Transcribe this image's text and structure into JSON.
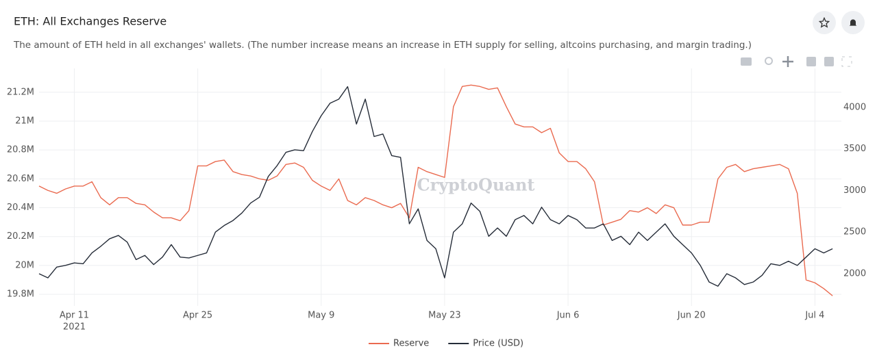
{
  "chart_data": {
    "type": "line",
    "title": "ETH: All Exchanges Reserve",
    "subtitle": "The amount of ETH held in all exchanges' wallets. (The number increase means an increase in ETH supply for selling, altcoins purchasing, and margin trading.)",
    "watermark": "CryptoQuant",
    "x_tick_year": "2021",
    "xlim": [
      "2021-04-07",
      "2021-07-07"
    ],
    "xticks": [
      {
        "value": "2021-04-11",
        "label": "Apr 11"
      },
      {
        "value": "2021-04-25",
        "label": "Apr 25"
      },
      {
        "value": "2021-05-09",
        "label": "May 9"
      },
      {
        "value": "2021-05-23",
        "label": "May 23"
      },
      {
        "value": "2021-06-06",
        "label": "Jun 6"
      },
      {
        "value": "2021-06-20",
        "label": "Jun 20"
      },
      {
        "value": "2021-07-04",
        "label": "Jul 4"
      }
    ],
    "ylim": [
      19720000,
      21365000
    ],
    "yticks": [
      {
        "value": 19800000,
        "label": "19.8M"
      },
      {
        "value": 20000000,
        "label": "20M"
      },
      {
        "value": 20200000,
        "label": "20.2M"
      },
      {
        "value": 20400000,
        "label": "20.4M"
      },
      {
        "value": 20600000,
        "label": "20.6M"
      },
      {
        "value": 20800000,
        "label": "20.8M"
      },
      {
        "value": 21000000,
        "label": "21M"
      },
      {
        "value": 21200000,
        "label": "21.2M"
      }
    ],
    "y2lim": [
      1613,
      4469
    ],
    "y2ticks": [
      2000,
      2500,
      3000,
      3500,
      4000
    ],
    "grid": true,
    "x": [
      "2021-04-07",
      "2021-04-08",
      "2021-04-09",
      "2021-04-10",
      "2021-04-11",
      "2021-04-12",
      "2021-04-13",
      "2021-04-14",
      "2021-04-15",
      "2021-04-16",
      "2021-04-17",
      "2021-04-18",
      "2021-04-19",
      "2021-04-20",
      "2021-04-21",
      "2021-04-22",
      "2021-04-23",
      "2021-04-24",
      "2021-04-25",
      "2021-04-26",
      "2021-04-27",
      "2021-04-28",
      "2021-04-29",
      "2021-04-30",
      "2021-05-01",
      "2021-05-02",
      "2021-05-03",
      "2021-05-04",
      "2021-05-05",
      "2021-05-06",
      "2021-05-07",
      "2021-05-08",
      "2021-05-09",
      "2021-05-10",
      "2021-05-11",
      "2021-05-12",
      "2021-05-13",
      "2021-05-14",
      "2021-05-15",
      "2021-05-16",
      "2021-05-17",
      "2021-05-18",
      "2021-05-19",
      "2021-05-20",
      "2021-05-21",
      "2021-05-22",
      "2021-05-23",
      "2021-05-24",
      "2021-05-25",
      "2021-05-26",
      "2021-05-27",
      "2021-05-28",
      "2021-05-29",
      "2021-05-30",
      "2021-05-31",
      "2021-06-01",
      "2021-06-02",
      "2021-06-03",
      "2021-06-04",
      "2021-06-05",
      "2021-06-06",
      "2021-06-07",
      "2021-06-08",
      "2021-06-09",
      "2021-06-10",
      "2021-06-11",
      "2021-06-12",
      "2021-06-13",
      "2021-06-14",
      "2021-06-15",
      "2021-06-16",
      "2021-06-17",
      "2021-06-18",
      "2021-06-19",
      "2021-06-20",
      "2021-06-21",
      "2021-06-22",
      "2021-06-23",
      "2021-06-24",
      "2021-06-25",
      "2021-06-26",
      "2021-06-27",
      "2021-06-28",
      "2021-06-29",
      "2021-06-30",
      "2021-07-01",
      "2021-07-02",
      "2021-07-03",
      "2021-07-04",
      "2021-07-05",
      "2021-07-06"
    ],
    "series": [
      {
        "name": "Reserve",
        "color": "#ea6a4f",
        "values": [
          20550000,
          20520000,
          20500000,
          20530000,
          20550000,
          20550000,
          20580000,
          20470000,
          20420000,
          20470000,
          20470000,
          20430000,
          20420000,
          20370000,
          20330000,
          20330000,
          20310000,
          20380000,
          20690000,
          20690000,
          20720000,
          20730000,
          20650000,
          20630000,
          20620000,
          20600000,
          20590000,
          20620000,
          20700000,
          20710000,
          20680000,
          20590000,
          20550000,
          20520000,
          20600000,
          20450000,
          20420000,
          20470000,
          20450000,
          20420000,
          20400000,
          20430000,
          20330000,
          20680000,
          20650000,
          20630000,
          20610000,
          21100000,
          21240000,
          21250000,
          21240000,
          21220000,
          21230000,
          21100000,
          20980000,
          20960000,
          20960000,
          20920000,
          20950000,
          20780000,
          20720000,
          20720000,
          20670000,
          20580000,
          20280000,
          20300000,
          20320000,
          20380000,
          20370000,
          20400000,
          20360000,
          20420000,
          20400000,
          20280000,
          20280000,
          20300000,
          20300000,
          20600000,
          20680000,
          20700000,
          20650000,
          20670000,
          20680000,
          20690000,
          20700000,
          20670000,
          20500000,
          19900000,
          19880000,
          19840000,
          19790000
        ]
      },
      {
        "name": "Price (USD)",
        "color": "#252c38",
        "axis": "y2",
        "values": [
          2000,
          1950,
          2080,
          2100,
          2130,
          2120,
          2250,
          2330,
          2420,
          2460,
          2380,
          2170,
          2220,
          2110,
          2200,
          2350,
          2200,
          2190,
          2220,
          2250,
          2500,
          2580,
          2640,
          2730,
          2850,
          2920,
          3170,
          3300,
          3460,
          3490,
          3480,
          3710,
          3900,
          4050,
          4100,
          4250,
          3800,
          4100,
          3650,
          3680,
          3420,
          3400,
          2600,
          2780,
          2400,
          2300,
          1950,
          2500,
          2600,
          2850,
          2750,
          2450,
          2550,
          2450,
          2650,
          2700,
          2600,
          2800,
          2650,
          2600,
          2700,
          2650,
          2550,
          2550,
          2600,
          2400,
          2450,
          2350,
          2500,
          2400,
          2500,
          2600,
          2450,
          2350,
          2250,
          2100,
          1900,
          1850,
          2000,
          1950,
          1870,
          1900,
          1980,
          2120,
          2100,
          2150,
          2100,
          2200,
          2300,
          2250,
          2300
        ]
      }
    ]
  }
}
